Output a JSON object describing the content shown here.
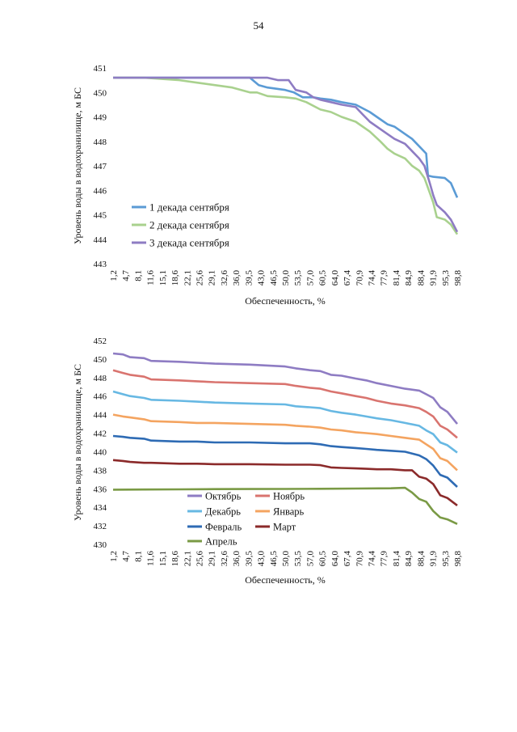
{
  "page": {
    "number": "54"
  },
  "chart_data": [
    {
      "type": "line",
      "xlabel": "Обеспеченность, %",
      "ylabel": "Уровень воды в водохранилище, м БС",
      "ylim": [
        443,
        451
      ],
      "yticks": [
        443,
        444,
        445,
        446,
        447,
        448,
        449,
        450,
        451
      ],
      "xticks": [
        "1,2",
        "4,7",
        "8,1",
        "11,6",
        "15,1",
        "18,6",
        "22,1",
        "25,6",
        "29,1",
        "32,6",
        "36,0",
        "39,5",
        "43,0",
        "46,5",
        "50,0",
        "53,5",
        "57,0",
        "60,5",
        "64,0",
        "67,4",
        "70,9",
        "74,4",
        "77,9",
        "81,4",
        "84,9",
        "88,4",
        "91,9",
        "95,3",
        "98,8"
      ],
      "legend_position": "bottom-left",
      "grid": false,
      "series": [
        {
          "name": "1 декада сентября",
          "color": "#5b9bd5",
          "x": [
            1.2,
            10,
            20,
            30,
            40,
            42.5,
            45,
            50,
            52.5,
            55,
            58,
            60,
            63,
            66,
            70,
            74,
            77,
            79,
            81,
            84,
            86,
            88,
            90,
            90.5,
            92,
            95.3,
            97,
            98.8
          ],
          "values": [
            450.6,
            450.6,
            450.6,
            450.6,
            450.6,
            450.3,
            450.2,
            450.1,
            450.0,
            449.8,
            449.8,
            449.75,
            449.7,
            449.6,
            449.5,
            449.2,
            448.9,
            448.7,
            448.6,
            448.3,
            448.1,
            447.8,
            447.5,
            446.6,
            446.55,
            446.5,
            446.3,
            445.7
          ]
        },
        {
          "name": "2 декада сентября",
          "color": "#a9d18e",
          "x": [
            1.2,
            10,
            15,
            20,
            25,
            30,
            35,
            40,
            42,
            45,
            50,
            53,
            56,
            60,
            63,
            66,
            70,
            74,
            77,
            79,
            81,
            84,
            86,
            88,
            89.5,
            91,
            92,
            93,
            95.3,
            97,
            98.8
          ],
          "values": [
            450.6,
            450.6,
            450.55,
            450.5,
            450.4,
            450.3,
            450.2,
            450.0,
            450.0,
            449.85,
            449.8,
            449.75,
            449.6,
            449.3,
            449.2,
            449.0,
            448.8,
            448.4,
            448.0,
            447.7,
            447.5,
            447.3,
            447.0,
            446.8,
            446.5,
            445.9,
            445.5,
            444.9,
            444.8,
            444.6,
            444.2
          ]
        },
        {
          "name": "3 декада сентября",
          "color": "#8e7cc3",
          "x": [
            1.2,
            10,
            20,
            30,
            40,
            43,
            45,
            48,
            51,
            53,
            56,
            58,
            60,
            63,
            66,
            70,
            72,
            74,
            77,
            79,
            81,
            84,
            86,
            88,
            89.5,
            91,
            92,
            93,
            95.3,
            97,
            98.8
          ],
          "values": [
            450.6,
            450.6,
            450.6,
            450.6,
            450.6,
            450.6,
            450.6,
            450.5,
            450.5,
            450.1,
            450.0,
            449.8,
            449.7,
            449.6,
            449.5,
            449.4,
            449.1,
            448.8,
            448.5,
            448.3,
            448.1,
            447.9,
            447.6,
            447.3,
            447.0,
            446.3,
            445.8,
            445.4,
            445.1,
            444.8,
            444.3
          ]
        }
      ]
    },
    {
      "type": "line",
      "xlabel": "Обеспеченность, %",
      "ylabel": "Уровень воды в водохранилище, м БС",
      "ylim": [
        430,
        452
      ],
      "yticks": [
        430,
        432,
        434,
        436,
        438,
        440,
        442,
        444,
        446,
        448,
        450,
        452
      ],
      "xticks": [
        "1,2",
        "4,7",
        "8,1",
        "11,6",
        "15,1",
        "18,6",
        "22,1",
        "25,6",
        "29,1",
        "32,6",
        "36,0",
        "39,5",
        "43,0",
        "46,5",
        "50,0",
        "53,5",
        "57,0",
        "60,5",
        "64,0",
        "67,4",
        "70,9",
        "74,4",
        "77,9",
        "81,4",
        "84,9",
        "88,4",
        "91,9",
        "95,3",
        "98,8"
      ],
      "legend_position": "bottom-left",
      "grid": false,
      "series": [
        {
          "name": "Октябрь",
          "color": "#8e7cc3",
          "x": [
            1.2,
            4,
            6,
            10,
            12,
            20,
            25,
            30,
            40,
            50,
            53,
            57,
            60,
            63,
            66,
            70,
            73,
            76,
            80,
            84,
            88,
            90,
            92,
            94,
            96,
            98.8
          ],
          "values": [
            450.6,
            450.5,
            450.2,
            450.1,
            449.8,
            449.7,
            449.6,
            449.5,
            449.4,
            449.2,
            449.0,
            448.8,
            448.7,
            448.3,
            448.2,
            447.9,
            447.7,
            447.4,
            447.1,
            446.8,
            446.6,
            446.2,
            445.8,
            444.8,
            444.3,
            443.0
          ]
        },
        {
          "name": "Ноябрь",
          "color": "#d9746f",
          "x": [
            1.2,
            4,
            6,
            10,
            12,
            20,
            25,
            30,
            40,
            50,
            53,
            57,
            60,
            63,
            66,
            70,
            73,
            76,
            80,
            84,
            88,
            90,
            92,
            94,
            96,
            98.8
          ],
          "values": [
            448.8,
            448.5,
            448.3,
            448.1,
            447.8,
            447.7,
            447.6,
            447.5,
            447.4,
            447.3,
            447.1,
            446.9,
            446.8,
            446.5,
            446.3,
            446.0,
            445.8,
            445.5,
            445.2,
            445.0,
            444.7,
            444.3,
            443.8,
            442.8,
            442.4,
            441.5
          ]
        },
        {
          "name": "Декабрь",
          "color": "#67b8e3",
          "x": [
            1.2,
            4,
            6,
            10,
            12,
            20,
            25,
            30,
            40,
            50,
            53,
            57,
            60,
            63,
            66,
            70,
            73,
            76,
            80,
            84,
            88,
            90,
            92,
            94,
            96,
            98.8
          ],
          "values": [
            446.5,
            446.2,
            446.0,
            445.8,
            445.6,
            445.5,
            445.4,
            445.3,
            445.2,
            445.1,
            444.9,
            444.8,
            444.7,
            444.4,
            444.2,
            444.0,
            443.8,
            443.6,
            443.4,
            443.1,
            442.8,
            442.3,
            441.9,
            441.0,
            440.7,
            439.9
          ]
        },
        {
          "name": "Январь",
          "color": "#f4a460",
          "x": [
            1.2,
            4,
            6,
            10,
            12,
            20,
            25,
            30,
            40,
            50,
            53,
            57,
            60,
            63,
            66,
            70,
            73,
            76,
            80,
            84,
            88,
            90,
            92,
            94,
            96,
            98.8
          ],
          "values": [
            444.0,
            443.8,
            443.7,
            443.5,
            443.3,
            443.2,
            443.1,
            443.1,
            443.0,
            442.9,
            442.8,
            442.7,
            442.6,
            442.4,
            442.3,
            442.1,
            442.0,
            441.9,
            441.7,
            441.5,
            441.3,
            440.8,
            440.3,
            439.3,
            439.0,
            438.0
          ]
        },
        {
          "name": "Февраль",
          "color": "#2e6bb4",
          "x": [
            1.2,
            4,
            6,
            10,
            12,
            20,
            25,
            30,
            40,
            50,
            53,
            57,
            60,
            63,
            66,
            70,
            73,
            76,
            80,
            84,
            88,
            90,
            92,
            94,
            96,
            98.8
          ],
          "values": [
            441.7,
            441.6,
            441.5,
            441.4,
            441.2,
            441.1,
            441.1,
            441.0,
            441.0,
            440.9,
            440.9,
            440.9,
            440.8,
            440.6,
            440.5,
            440.4,
            440.3,
            440.2,
            440.1,
            440.0,
            439.6,
            439.2,
            438.5,
            437.5,
            437.2,
            436.2
          ]
        },
        {
          "name": "Март",
          "color": "#8b2a2a",
          "x": [
            1.2,
            4,
            6,
            10,
            12,
            20,
            25,
            30,
            40,
            50,
            53,
            57,
            60,
            63,
            66,
            70,
            73,
            76,
            80,
            84,
            86,
            88,
            90,
            92,
            94,
            96,
            98.8
          ],
          "values": [
            439.1,
            439.0,
            438.9,
            438.8,
            438.8,
            438.7,
            438.7,
            438.65,
            438.65,
            438.6,
            438.6,
            438.6,
            438.55,
            438.3,
            438.25,
            438.2,
            438.15,
            438.1,
            438.1,
            438.0,
            438.0,
            437.3,
            437.1,
            436.5,
            435.3,
            435.0,
            434.2
          ]
        },
        {
          "name": "Апрель",
          "color": "#7a9a45",
          "x": [
            1.2,
            10,
            20,
            30,
            40,
            50,
            60,
            70,
            80,
            84,
            86,
            88,
            90,
            92,
            94,
            96,
            98.8
          ],
          "values": [
            435.9,
            435.92,
            435.94,
            435.96,
            435.97,
            435.98,
            436.0,
            436.02,
            436.05,
            436.1,
            435.6,
            434.9,
            434.6,
            433.6,
            432.9,
            432.7,
            432.2
          ]
        }
      ]
    }
  ]
}
